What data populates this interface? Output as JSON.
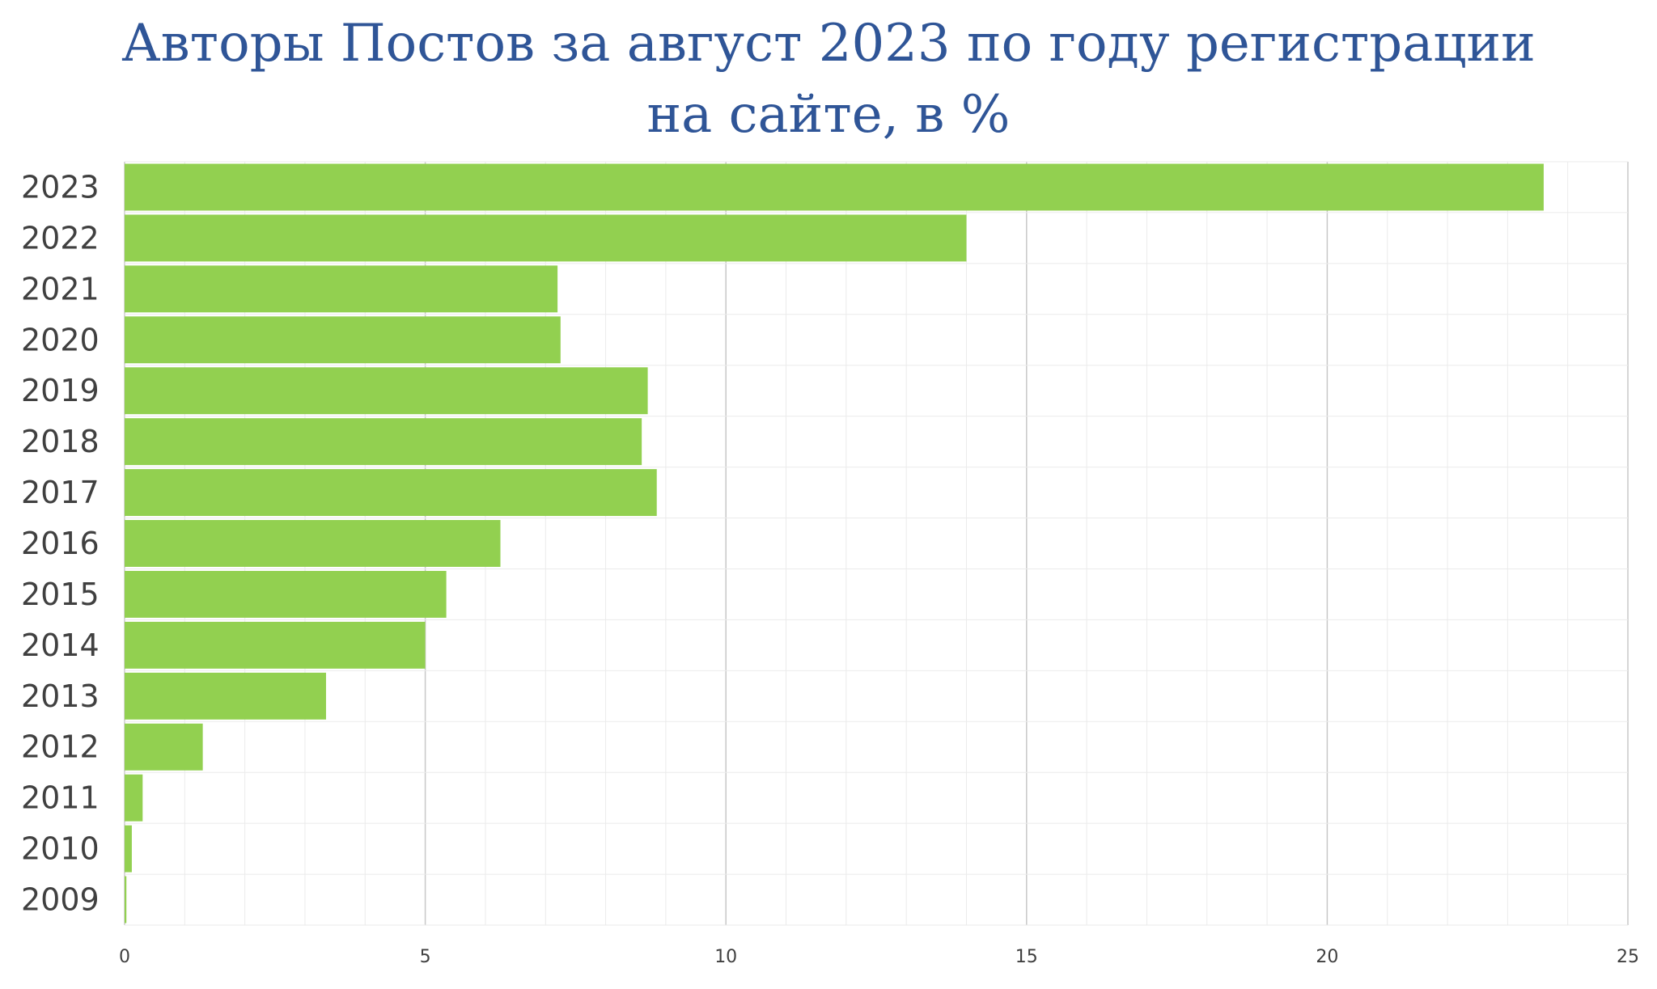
{
  "chart_data": {
    "type": "bar",
    "orientation": "horizontal",
    "title_line1": "Авторы Постов за август 2023 по году регистрации",
    "title_line2": "на сайте, в %",
    "categories": [
      "2023",
      "2022",
      "2021",
      "2020",
      "2019",
      "2018",
      "2017",
      "2016",
      "2015",
      "2014",
      "2013",
      "2012",
      "2011",
      "2010",
      "2009"
    ],
    "values": [
      23.6,
      14.0,
      7.2,
      7.25,
      8.7,
      8.6,
      8.85,
      6.25,
      5.35,
      5.0,
      3.35,
      1.3,
      0.3,
      0.12,
      0.03
    ],
    "xlim": [
      0,
      25
    ],
    "xticks": [
      "0",
      "5",
      "10",
      "15",
      "20",
      "25"
    ],
    "bar_color": "#92d050",
    "major_grid_color": "#c8c8c8",
    "minor_grid_color": "#ebebeb",
    "grid": true
  }
}
